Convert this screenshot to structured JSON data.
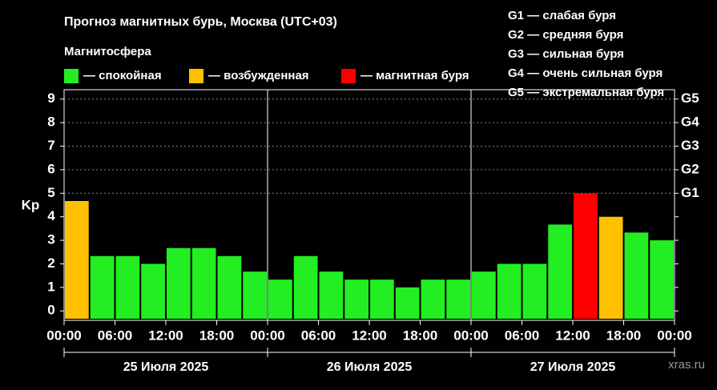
{
  "chart_data": {
    "type": "bar",
    "title": "Прогноз магнитных бурь, Москва (UTC+03)",
    "subtitle": "Магнитосфера",
    "ylabel": "Kp",
    "legend": [
      {
        "label": "— спокойная",
        "color": "#22ee22"
      },
      {
        "label": "— возбужденная",
        "color": "#ffc000"
      },
      {
        "label": "— магнитная буря",
        "color": "#ff0000"
      }
    ],
    "scale_legend": [
      "G1 — слабая буря",
      "G2 — средняя буря",
      "G3 — сильная буря",
      "G4 — очень сильная буря",
      "G5 — экстремальная буря"
    ],
    "x": [
      0,
      3,
      6,
      9,
      12,
      15,
      18,
      21,
      24,
      27,
      30,
      33,
      36,
      39,
      42,
      45,
      48,
      51,
      54,
      57,
      60,
      63,
      66,
      69
    ],
    "values": [
      4.67,
      2.33,
      2.33,
      2.0,
      2.67,
      2.67,
      2.33,
      1.67,
      1.33,
      2.33,
      1.67,
      1.33,
      1.33,
      1.0,
      1.33,
      1.33,
      1.67,
      2.0,
      2.0,
      3.67,
      5.0,
      4.0,
      3.33,
      3.0
    ],
    "colors": [
      "#ffc000",
      "#22ee22",
      "#22ee22",
      "#22ee22",
      "#22ee22",
      "#22ee22",
      "#22ee22",
      "#22ee22",
      "#22ee22",
      "#22ee22",
      "#22ee22",
      "#22ee22",
      "#22ee22",
      "#22ee22",
      "#22ee22",
      "#22ee22",
      "#22ee22",
      "#22ee22",
      "#22ee22",
      "#22ee22",
      "#ff0000",
      "#ffc000",
      "#22ee22",
      "#22ee22"
    ],
    "xlim": [
      0,
      72
    ],
    "xticks": [
      {
        "value": 0,
        "label": "00:00"
      },
      {
        "value": 6,
        "label": "06:00"
      },
      {
        "value": 12,
        "label": "12:00"
      },
      {
        "value": 18,
        "label": "18:00"
      },
      {
        "value": 24,
        "label": "00:00"
      },
      {
        "value": 30,
        "label": "06:00"
      },
      {
        "value": 36,
        "label": "12:00"
      },
      {
        "value": 42,
        "label": "18:00"
      },
      {
        "value": 48,
        "label": "00:00"
      },
      {
        "value": 54,
        "label": "06:00"
      },
      {
        "value": 60,
        "label": "12:00"
      },
      {
        "value": 66,
        "label": "18:00"
      },
      {
        "value": 72,
        "label": "00:00"
      }
    ],
    "days": [
      "25 Июля 2025",
      "26 Июля 2025",
      "27 Июля 2025"
    ],
    "ylim": [
      -0.4,
      9.4
    ],
    "yticks": [
      0,
      1,
      2,
      3,
      4,
      5,
      6,
      7,
      8,
      9
    ],
    "y2lim": [
      -0.4,
      9.4
    ],
    "y2ticks": [
      {
        "value": 5,
        "label": "G1"
      },
      {
        "value": 6,
        "label": "G2"
      },
      {
        "value": 7,
        "label": "G3"
      },
      {
        "value": 8,
        "label": "G4"
      },
      {
        "value": 9,
        "label": "G5"
      }
    ],
    "grid": true,
    "watermark": "xras.ru"
  }
}
